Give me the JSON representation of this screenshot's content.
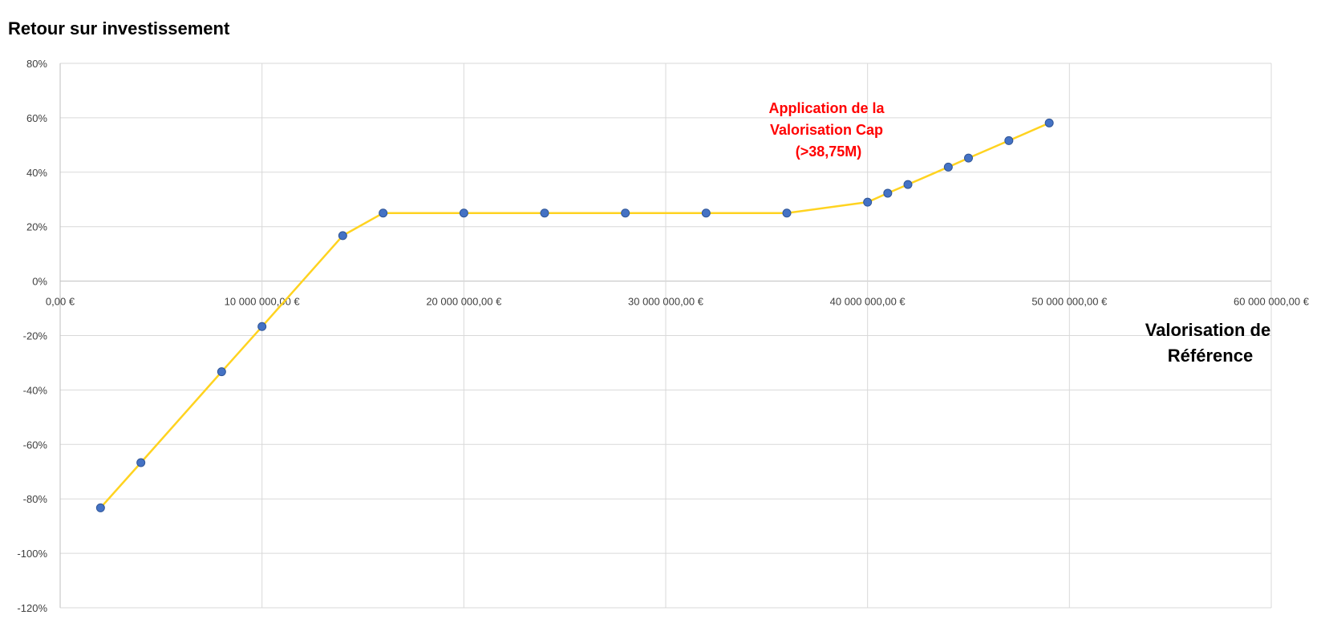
{
  "chart_data": {
    "type": "line",
    "title": "Retour sur investissement",
    "xlabel": [
      "Valorisation de",
      "Référence"
    ],
    "ylabel": "",
    "xlim": [
      0,
      60000000
    ],
    "ylim": [
      -1.2,
      0.8
    ],
    "x_ticks": [
      {
        "value": 0,
        "label": "0,00 €"
      },
      {
        "value": 10000000,
        "label": "10 000 000,00 €"
      },
      {
        "value": 20000000,
        "label": "20 000 000,00 €"
      },
      {
        "value": 30000000,
        "label": "30 000 000,00 €"
      },
      {
        "value": 40000000,
        "label": "40 000 000,00 €"
      },
      {
        "value": 50000000,
        "label": "50 000 000,00 €"
      },
      {
        "value": 60000000,
        "label": "60 000 000,00 €"
      }
    ],
    "y_ticks": [
      {
        "value": 0.8,
        "label": "80%"
      },
      {
        "value": 0.6,
        "label": "60%"
      },
      {
        "value": 0.4,
        "label": "40%"
      },
      {
        "value": 0.2,
        "label": "20%"
      },
      {
        "value": 0.0,
        "label": "0%"
      },
      {
        "value": -0.2,
        "label": "-20%"
      },
      {
        "value": -0.4,
        "label": "-40%"
      },
      {
        "value": -0.6,
        "label": "-60%"
      },
      {
        "value": -0.8,
        "label": "-80%"
      },
      {
        "value": -1.0,
        "label": "-100%"
      },
      {
        "value": -1.2,
        "label": "-120%"
      }
    ],
    "grid": true,
    "series": [
      {
        "name": "",
        "line_color": "#FFD320",
        "marker_color": "#4472C4",
        "points": [
          {
            "x": 2000000,
            "y": -0.833
          },
          {
            "x": 4000000,
            "y": -0.667
          },
          {
            "x": 8000000,
            "y": -0.333
          },
          {
            "x": 10000000,
            "y": -0.167
          },
          {
            "x": 14000000,
            "y": 0.167
          },
          {
            "x": 16000000,
            "y": 0.25
          },
          {
            "x": 20000000,
            "y": 0.25
          },
          {
            "x": 24000000,
            "y": 0.25
          },
          {
            "x": 28000000,
            "y": 0.25
          },
          {
            "x": 32000000,
            "y": 0.25
          },
          {
            "x": 36000000,
            "y": 0.25
          },
          {
            "x": 40000000,
            "y": 0.29
          },
          {
            "x": 41000000,
            "y": 0.323
          },
          {
            "x": 42000000,
            "y": 0.355
          },
          {
            "x": 44000000,
            "y": 0.419
          },
          {
            "x": 45000000,
            "y": 0.452
          },
          {
            "x": 47000000,
            "y": 0.516
          },
          {
            "x": 49000000,
            "y": 0.581
          }
        ]
      }
    ],
    "annotation": {
      "lines": [
        "Application de la",
        "Valorisation Cap",
        "(>38,75M)"
      ],
      "color": "#FF0000"
    }
  }
}
